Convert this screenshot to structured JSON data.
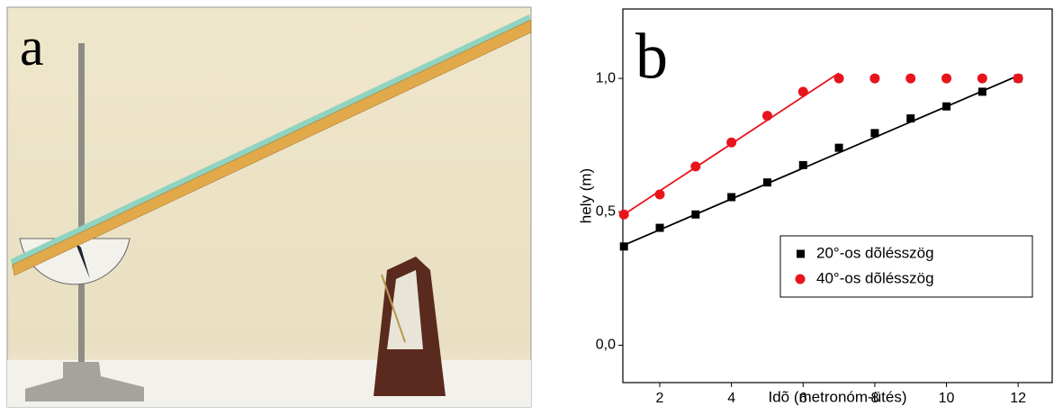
{
  "photo_label": "a",
  "chart_data": {
    "type": "scatter",
    "panel_label": "b",
    "xlabel": "Idõ (metronóm-ütés)",
    "ylabel": "hely (m)",
    "x": [
      1,
      2,
      3,
      4,
      5,
      6,
      7,
      8,
      9,
      10,
      11,
      12
    ],
    "series": [
      {
        "name": "20°-os dõlésszög",
        "color": "#000000",
        "marker": "square",
        "values": [
          0.37,
          0.44,
          0.49,
          0.555,
          0.61,
          0.675,
          0.74,
          0.795,
          0.85,
          0.895,
          0.95,
          1.0
        ],
        "fit": {
          "x": [
            1,
            12
          ],
          "values": [
            0.375,
            1.01
          ]
        }
      },
      {
        "name": "40°-os dõlésszög",
        "color": "#e8141c",
        "marker": "circle",
        "values": [
          0.49,
          0.565,
          0.67,
          0.76,
          0.86,
          0.95,
          1.0,
          1.0,
          1.0,
          1.0,
          1.0,
          1.0
        ],
        "fit": {
          "x": [
            1,
            7
          ],
          "values": [
            0.49,
            1.02
          ]
        }
      }
    ],
    "xlim": [
      0.97,
      12.95
    ],
    "ylim": [
      -0.14,
      1.26
    ],
    "xticks": [
      2,
      4,
      6,
      8,
      10,
      12
    ],
    "yticks": [
      {
        "value": 0,
        "label": "0,0"
      },
      {
        "value": 0.5,
        "label": "0,5"
      },
      {
        "value": 1,
        "label": "1,0"
      }
    ],
    "legend": "lower right"
  }
}
